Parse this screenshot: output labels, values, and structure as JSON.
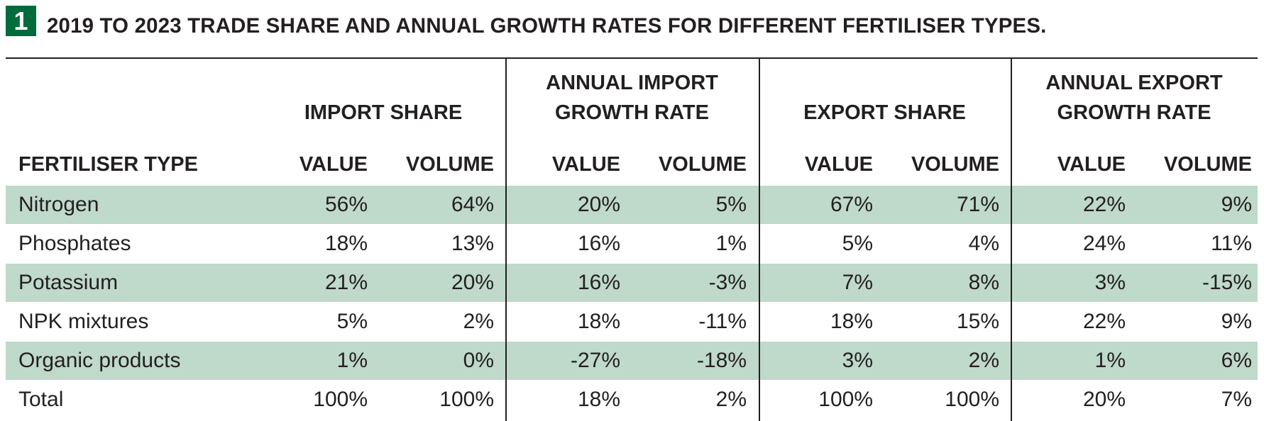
{
  "badge": {
    "number": "1",
    "color": "#006b3c"
  },
  "title": "2019 TO 2023 TRADE SHARE AND ANNUAL GROWTH RATES FOR DIFFERENT FERTILISER TYPES.",
  "colors": {
    "row_shade": "#bfd9cb",
    "rules": "#231f20"
  },
  "header": {
    "first_column": "FERTILISER TYPE",
    "groups": [
      {
        "line1": "",
        "line2": "IMPORT SHARE",
        "sub": [
          "VALUE",
          "VOLUME"
        ]
      },
      {
        "line1": "ANNUAL IMPORT",
        "line2": "GROWTH RATE",
        "sub": [
          "VALUE",
          "VOLUME"
        ]
      },
      {
        "line1": "",
        "line2": "EXPORT SHARE",
        "sub": [
          "VALUE",
          "VOLUME"
        ]
      },
      {
        "line1": "ANNUAL EXPORT",
        "line2": "GROWTH RATE",
        "sub": [
          "VALUE",
          "VOLUME"
        ]
      }
    ]
  },
  "rows": [
    {
      "type": "Nitrogen",
      "values": [
        "56%",
        "64%",
        "20%",
        "5%",
        "67%",
        "71%",
        "22%",
        "9%"
      ]
    },
    {
      "type": "Phosphates",
      "values": [
        "18%",
        "13%",
        "16%",
        "1%",
        "5%",
        "4%",
        "24%",
        "11%"
      ]
    },
    {
      "type": "Potassium",
      "values": [
        "21%",
        "20%",
        "16%",
        "-3%",
        "7%",
        "8%",
        "3%",
        "-15%"
      ]
    },
    {
      "type": "NPK mixtures",
      "values": [
        "5%",
        "2%",
        "18%",
        "-11%",
        "18%",
        "15%",
        "22%",
        "9%"
      ]
    },
    {
      "type": "Organic products",
      "values": [
        "1%",
        "0%",
        "-27%",
        "-18%",
        "3%",
        "2%",
        "1%",
        "6%"
      ]
    },
    {
      "type": "Total",
      "values": [
        "100%",
        "100%",
        "18%",
        "2%",
        "100%",
        "100%",
        "20%",
        "7%"
      ]
    }
  ],
  "chart_data": {
    "type": "table",
    "title": "2019 TO 2023 TRADE SHARE AND ANNUAL GROWTH RATES FOR DIFFERENT FERTILISER TYPES.",
    "columns": [
      "FERTILISER TYPE",
      "IMPORT SHARE VALUE",
      "IMPORT SHARE VOLUME",
      "ANNUAL IMPORT GROWTH RATE VALUE",
      "ANNUAL IMPORT GROWTH RATE VOLUME",
      "EXPORT SHARE VALUE",
      "EXPORT SHARE VOLUME",
      "ANNUAL EXPORT GROWTH RATE VALUE",
      "ANNUAL EXPORT GROWTH RATE VOLUME"
    ],
    "rows": [
      [
        "Nitrogen",
        56,
        64,
        20,
        5,
        67,
        71,
        22,
        9
      ],
      [
        "Phosphates",
        18,
        13,
        16,
        1,
        5,
        4,
        24,
        11
      ],
      [
        "Potassium",
        21,
        20,
        16,
        -3,
        7,
        8,
        3,
        -15
      ],
      [
        "NPK mixtures",
        5,
        2,
        18,
        -11,
        18,
        15,
        22,
        9
      ],
      [
        "Organic products",
        1,
        0,
        -27,
        -18,
        3,
        2,
        1,
        6
      ],
      [
        "Total",
        100,
        100,
        18,
        2,
        100,
        100,
        20,
        7
      ]
    ],
    "unit": "%"
  }
}
